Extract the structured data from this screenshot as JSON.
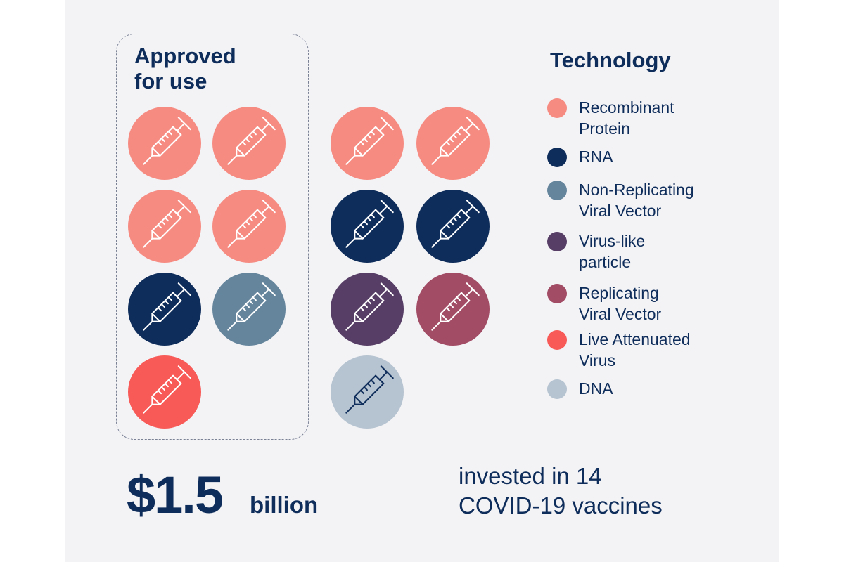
{
  "approved": {
    "title": "Approved\nfor use"
  },
  "legend": {
    "title": "Technology",
    "items": [
      {
        "key": "recombinant",
        "label": "Recombinant\nProtein",
        "color": "#f68b82"
      },
      {
        "key": "rna",
        "label": "RNA",
        "color": "#0f2d5a"
      },
      {
        "key": "nrvv",
        "label": "Non-Replicating\nViral Vector",
        "color": "#65859c"
      },
      {
        "key": "vlp",
        "label": "Virus-like\nparticle",
        "color": "#573e66"
      },
      {
        "key": "rvv",
        "label": "Replicating\nViral Vector",
        "color": "#a24c65"
      },
      {
        "key": "lav",
        "label": "Live Attenuated\nVirus",
        "color": "#f75a57"
      },
      {
        "key": "dna",
        "label": "DNA",
        "color": "#b6c3d0"
      }
    ]
  },
  "vaccines": {
    "approved": [
      "recombinant",
      "recombinant",
      "recombinant",
      "recombinant",
      "rna",
      "nrvv",
      "lav"
    ],
    "others": [
      "recombinant",
      "recombinant",
      "rna",
      "rna",
      "vlp",
      "rvv",
      "dna"
    ]
  },
  "stat": {
    "amount": "$1.5",
    "unit": "billion",
    "caption": "invested in 14\nCOVID-19 vaccines"
  },
  "icons": {
    "vaccine": "syringe-icon"
  }
}
